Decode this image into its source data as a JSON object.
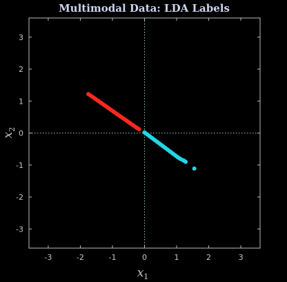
{
  "chart_data": {
    "type": "scatter",
    "title": "Multimodal Data: LDA Labels",
    "xlabel": "x",
    "xlabel_sub": "1",
    "ylabel": "x",
    "ylabel_sub": "2",
    "xlim": [
      -3.6,
      3.6
    ],
    "ylim": [
      -3.6,
      3.6
    ],
    "xticks": [
      -3,
      -2,
      -1,
      0,
      1,
      2,
      3
    ],
    "yticks": [
      -3,
      -2,
      -1,
      0,
      1,
      2,
      3
    ],
    "xtick_labels": [
      "-3",
      "-2",
      "-1",
      "0",
      "1",
      "2",
      "3"
    ],
    "ytick_labels": [
      "-3",
      "-2",
      "-1",
      "0",
      "1",
      "2",
      "3"
    ],
    "reference_lines": {
      "x": 0,
      "y": 0,
      "style": "dotted"
    },
    "background": "#000000",
    "axis_color": "#bdbdbd",
    "series": [
      {
        "color": "#ff2a1f",
        "points": [
          [
            -1.75,
            1.22
          ],
          [
            -1.65,
            1.15
          ],
          [
            -1.55,
            1.08
          ],
          [
            -1.45,
            1.01
          ],
          [
            -1.35,
            0.94
          ],
          [
            -1.25,
            0.87
          ],
          [
            -1.15,
            0.8
          ],
          [
            -1.05,
            0.73
          ],
          [
            -0.95,
            0.66
          ],
          [
            -0.85,
            0.59
          ],
          [
            -0.75,
            0.52
          ],
          [
            -0.65,
            0.45
          ],
          [
            -0.55,
            0.38
          ],
          [
            -0.45,
            0.31
          ],
          [
            -0.35,
            0.24
          ],
          [
            -0.25,
            0.17
          ],
          [
            -0.17,
            0.12
          ]
        ]
      },
      {
        "color": "#22d6e6",
        "points": [
          [
            0.0,
            0.02
          ],
          [
            0.08,
            -0.04
          ],
          [
            0.16,
            -0.1
          ],
          [
            0.24,
            -0.16
          ],
          [
            0.32,
            -0.22
          ],
          [
            0.4,
            -0.28
          ],
          [
            0.48,
            -0.34
          ],
          [
            0.56,
            -0.4
          ],
          [
            0.64,
            -0.46
          ],
          [
            0.72,
            -0.52
          ],
          [
            0.8,
            -0.58
          ],
          [
            0.88,
            -0.64
          ],
          [
            0.96,
            -0.7
          ],
          [
            1.04,
            -0.76
          ],
          [
            1.1,
            -0.8
          ],
          [
            1.22,
            -0.86
          ],
          [
            1.28,
            -0.9
          ],
          [
            1.55,
            -1.11
          ]
        ]
      }
    ]
  }
}
